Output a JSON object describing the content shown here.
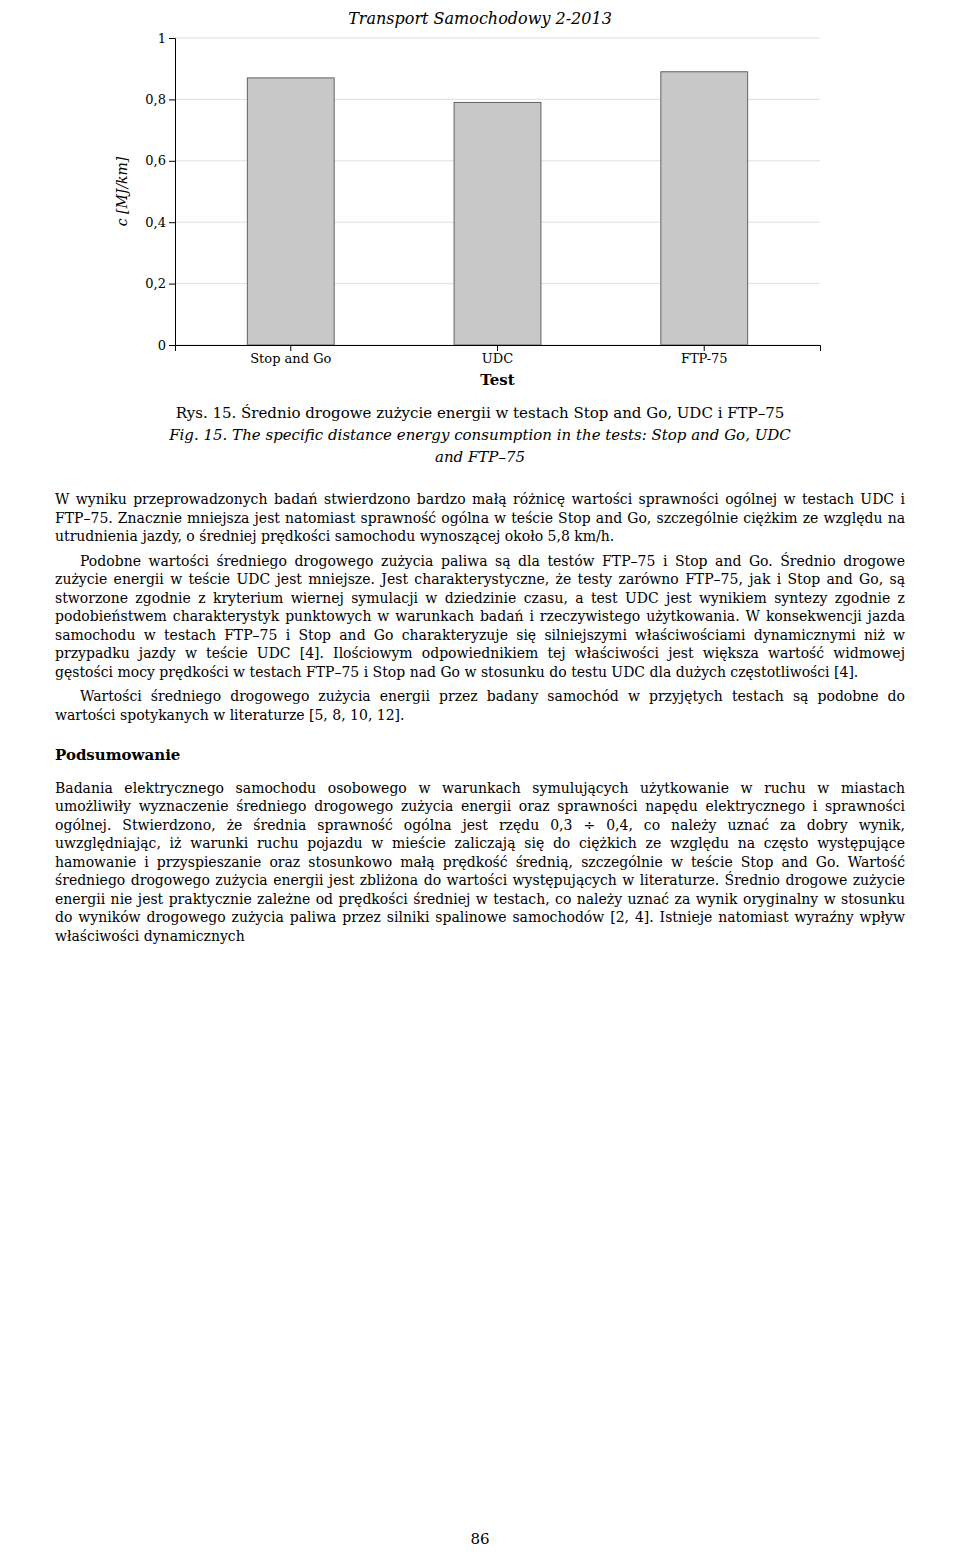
{
  "header": "Transport Samochodowy 2-2013",
  "chart_data": {
    "type": "bar",
    "categories": [
      "Stop and Go",
      "UDC",
      "FTP-75"
    ],
    "values": [
      0.87,
      0.79,
      0.89
    ],
    "color": "#c8c8c8",
    "xlabel": "Test",
    "ylabel": "c [MJ/km]",
    "ylim": [
      0,
      1.0
    ],
    "yticks": [
      0,
      {
        "value": 0.2,
        "label": "0,2"
      },
      {
        "value": 0.4,
        "label": "0,4"
      },
      {
        "value": 0.6,
        "label": "0,6"
      },
      {
        "value": 0.8,
        "label": "0,8"
      },
      1
    ],
    "grid": true
  },
  "caption": [
    "Rys. 15. Średnio drogowe zużycie energii w testach Stop and Go, UDC i FTP–75",
    "Fig. 15. The specific distance energy consumption in the tests: Stop and Go, UDC",
    "and FTP–75"
  ],
  "paragraphs": [
    "W wyniku przeprowadzonych badań stwierdzono bardzo małą różnicę wartości sprawności ogólnej w testach UDC i FTP–75. Znacznie mniejsza jest natomiast sprawność ogólna w teście Stop and Go, szczególnie ciężkim ze względu na utrudnienia jazdy, o średniej prędkości samochodu wynoszącej około 5,8 km/h.",
    "Podobne wartości średniego drogowego zużycia paliwa są dla testów FTP–75 i Stop and Go. Średnio drogowe zużycie energii w teście UDC jest mniejsze. Jest charakterystyczne, że testy zarówno FTP–75, jak i Stop and Go, są stworzone zgodnie z kryterium wiernej symulacji w dziedzinie czasu, a test UDC jest wynikiem syntezy zgodnie z podobieństwem charakterystyk punktowych w warunkach badań i rzeczywistego użytkowania. W konsekwencji jazda samochodu w testach FTP–75 i Stop and Go charakteryzuje się silniejszymi właściwościami dynamicznymi niż w przypadku jazdy w teście UDC [4]. Ilościowym odpowiednikiem tej właściwości jest większa wartość widmowej gęstości mocy prędkości w testach FTP–75 i Stop nad Go w stosunku do testu UDC dla dużych częstotliwości [4].",
    "Wartości średniego drogowego zużycia energii przez badany samochód w przyjętych testach są podobne do wartości spotykanych w literaturze [5, 8, 10, 12]."
  ],
  "section_title": "Podsumowanie",
  "section_paragraphs": [
    "Badania elektrycznego samochodu osobowego w warunkach symulujących użytkowanie w ruchu w miastach umożliwiły wyznaczenie średniego drogowego zużycia energii oraz sprawności napędu elektrycznego i sprawności ogólnej. Stwierdzono, że średnia sprawność ogólna jest rzędu 0,3 ÷ 0,4, co należy uznać za dobry wynik, uwzględniając, iż warunki ruchu pojazdu w mieście zaliczają się do ciężkich ze względu na często występujące hamowanie i przyspieszanie oraz stosunkowo małą prędkość średnią, szczególnie w teście Stop and Go. Wartość średniego drogowego zużycia energii jest zbliżona do wartości występujących w literaturze. Średnio drogowe zużycie energii nie jest praktycznie zależne od prędkości średniej w testach, co należy uznać za wynik oryginalny w stosunku do wyników drogowego zużycia paliwa przez silniki spalinowe samochodów [2, 4]. Istnieje natomiast wyraźny wpływ właściwości dynamicznych"
  ],
  "page_number": "86"
}
